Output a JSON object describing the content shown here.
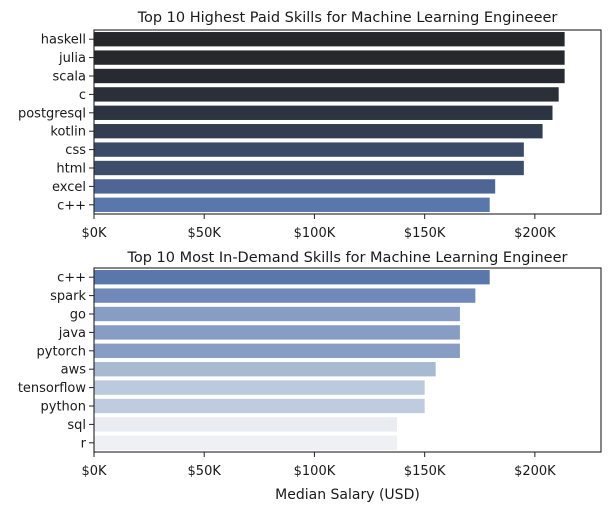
{
  "chart_data": [
    {
      "type": "bar",
      "orientation": "horizontal",
      "title": "Top 10 Highest Paid Skills for Machine Learning Engineeer",
      "xlabel": "",
      "ylabel": "",
      "categories": [
        "haskell",
        "julia",
        "scala",
        "c",
        "postgresql",
        "kotlin",
        "css",
        "html",
        "excel",
        "c++"
      ],
      "values": [
        213500,
        213500,
        213500,
        210800,
        208000,
        203500,
        195000,
        195000,
        182000,
        179500
      ],
      "colors": [
        "#25272b",
        "#26282d",
        "#272a30",
        "#2a2f38",
        "#2d3441",
        "#333d51",
        "#3b4a66",
        "#3d4e6b",
        "#4f6694",
        "#5a77ac"
      ],
      "xlim": [
        0,
        230000
      ],
      "xticks": [
        0,
        50000,
        100000,
        150000,
        200000
      ],
      "xtick_labels": [
        "$0K",
        "$50K",
        "$100K",
        "$150K",
        "$200K"
      ],
      "grid": false,
      "legend": false
    },
    {
      "type": "bar",
      "orientation": "horizontal",
      "title": "Top 10 Most In-Demand Skills for Machine Learning Engineer",
      "xlabel": "Median Salary (USD)",
      "ylabel": "",
      "categories": [
        "c++",
        "spark",
        "go",
        "java",
        "pytorch",
        "aws",
        "tensorflow",
        "python",
        "sql",
        "r"
      ],
      "values": [
        179500,
        173000,
        166000,
        166000,
        166000,
        155000,
        150000,
        150000,
        137500,
        137500
      ],
      "colors": [
        "#5a77ac",
        "#7089b9",
        "#879dc4",
        "#879dc4",
        "#879dc4",
        "#a8b9d2",
        "#bccadd",
        "#bfcbde",
        "#e9ecf0",
        "#eef0f3"
      ],
      "xlim": [
        0,
        230000
      ],
      "xticks": [
        0,
        50000,
        100000,
        150000,
        200000
      ],
      "xtick_labels": [
        "$0K",
        "$50K",
        "$100K",
        "$150K",
        "$200K"
      ],
      "grid": false,
      "legend": false
    }
  ]
}
